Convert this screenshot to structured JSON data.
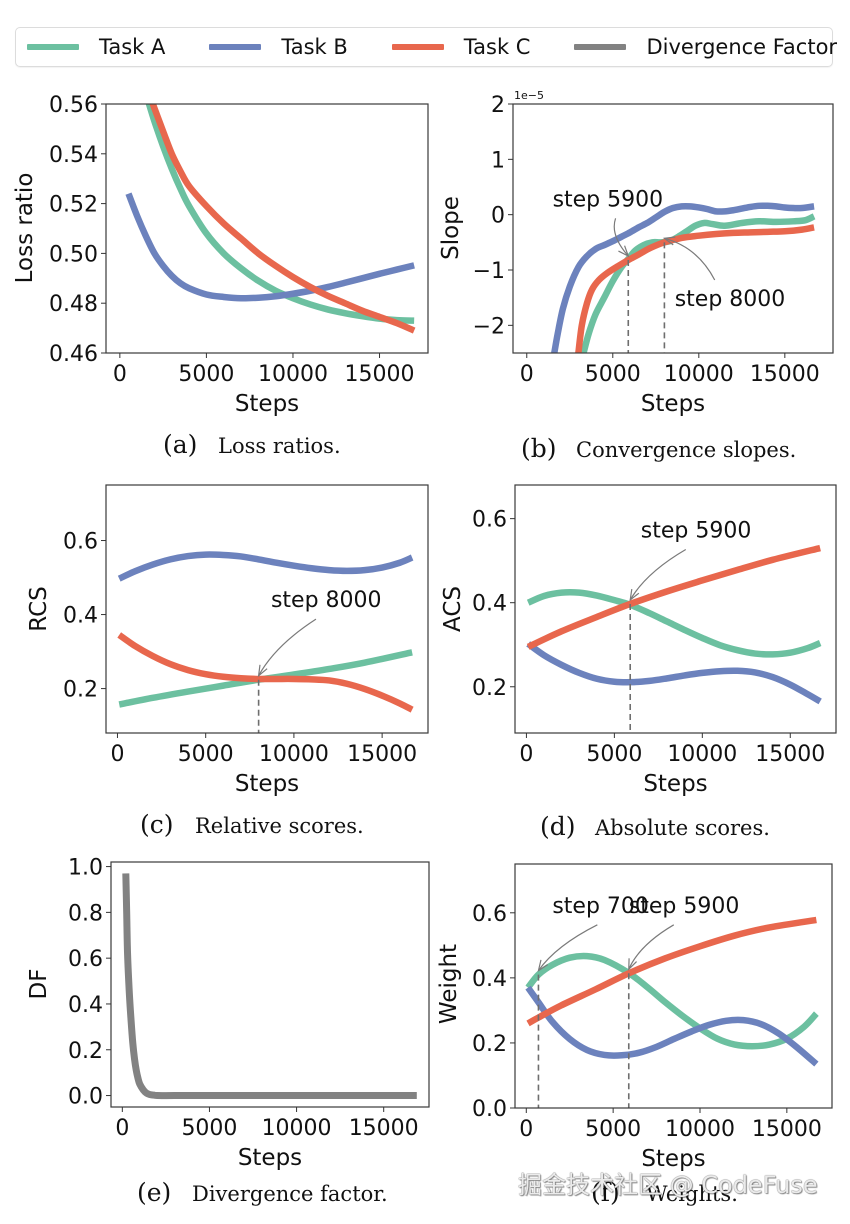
{
  "legend": {
    "items": [
      {
        "label": "Task A",
        "color": "#6cc0a0"
      },
      {
        "label": "Task B",
        "color": "#6c82bd"
      },
      {
        "label": "Task C",
        "color": "#e8674d"
      },
      {
        "label": "Divergence Factor",
        "color": "#828282"
      }
    ]
  },
  "watermark": "掘金技术社区 @ CodeFuse",
  "chart_data": [
    {
      "id": "a",
      "type": "line",
      "caption_letter": "(a)",
      "caption": "Loss ratios.",
      "xlabel": "Steps",
      "ylabel": "Loss ratio",
      "xlim": [
        -800,
        17800
      ],
      "ylim": [
        0.46,
        0.56
      ],
      "xticks": [
        0,
        5000,
        10000,
        15000
      ],
      "yticks": [
        0.46,
        0.48,
        0.5,
        0.52,
        0.54,
        0.56
      ],
      "ytick_labels": [
        "0.46",
        "0.48",
        "0.50",
        "0.52",
        "0.54",
        "0.56"
      ],
      "grid": false,
      "series": [
        {
          "name": "Task A",
          "color": "#6cc0a0",
          "x": [
            1600,
            2000,
            2500,
            3000,
            3500,
            4000,
            5000,
            6000,
            7000,
            8000,
            9000,
            10000,
            11000,
            12000,
            13000,
            14000,
            15000,
            16000,
            17000
          ],
          "y": [
            0.562,
            0.553,
            0.543,
            0.534,
            0.526,
            0.519,
            0.508,
            0.5,
            0.494,
            0.489,
            0.485,
            0.482,
            0.4795,
            0.4775,
            0.476,
            0.4748,
            0.4738,
            0.4732,
            0.473
          ]
        },
        {
          "name": "Task B",
          "color": "#6c82bd",
          "x": [
            500,
            1000,
            1500,
            2000,
            2500,
            3000,
            3500,
            4000,
            5000,
            6000,
            7000,
            8000,
            9000,
            10000,
            11000,
            12000,
            13000,
            14000,
            15000,
            16000,
            17000
          ],
          "y": [
            0.524,
            0.515,
            0.507,
            0.5,
            0.495,
            0.491,
            0.488,
            0.486,
            0.4835,
            0.4825,
            0.482,
            0.4822,
            0.4828,
            0.4838,
            0.485,
            0.4865,
            0.4882,
            0.49,
            0.4918,
            0.4935,
            0.4952
          ]
        },
        {
          "name": "Task C",
          "color": "#e8674d",
          "x": [
            1800,
            2500,
            3000,
            3500,
            4000,
            5000,
            6000,
            7000,
            8000,
            9000,
            10000,
            11000,
            12000,
            13000,
            14000,
            15000,
            16000,
            17000
          ],
          "y": [
            0.562,
            0.549,
            0.54,
            0.533,
            0.527,
            0.519,
            0.512,
            0.506,
            0.5,
            0.495,
            0.4905,
            0.4865,
            0.483,
            0.48,
            0.477,
            0.4745,
            0.472,
            0.469
          ]
        }
      ],
      "annotations": []
    },
    {
      "id": "b",
      "type": "line",
      "caption_letter": "(b)",
      "caption": "Convergence slopes.",
      "xlabel": "Steps",
      "ylabel": "Slope",
      "y_offset_text": "1e−5",
      "xlim": [
        -800,
        17800
      ],
      "ylim": [
        -2.5,
        2.0
      ],
      "xticks": [
        0,
        5000,
        10000,
        15000
      ],
      "yticks": [
        -2,
        -1,
        0,
        1,
        2
      ],
      "ytick_labels": [
        "−2",
        "−1",
        "0",
        "1",
        "2"
      ],
      "grid": false,
      "series": [
        {
          "name": "Task A",
          "color": "#6cc0a0",
          "x": [
            3300,
            3600,
            4000,
            4500,
            5000,
            5500,
            5900,
            6300,
            6800,
            7300,
            7800,
            8300,
            8800,
            9300,
            9800,
            10300,
            10800,
            11500,
            12500,
            13500,
            14500,
            15500,
            16200,
            16700
          ],
          "y": [
            -2.5,
            -2.15,
            -1.8,
            -1.5,
            -1.2,
            -0.95,
            -0.8,
            -0.65,
            -0.55,
            -0.5,
            -0.5,
            -0.48,
            -0.4,
            -0.3,
            -0.2,
            -0.15,
            -0.17,
            -0.2,
            -0.15,
            -0.12,
            -0.13,
            -0.12,
            -0.1,
            -0.03
          ]
        },
        {
          "name": "Task B",
          "color": "#6c82bd",
          "x": [
            1600,
            1800,
            2100,
            2500,
            3000,
            3500,
            4000,
            4500,
            5000,
            5500,
            6000,
            6500,
            7000,
            7500,
            8000,
            8500,
            9000,
            9500,
            10000,
            10500,
            11000,
            11500,
            12000,
            12500,
            13000,
            13500,
            14000,
            14500,
            15000,
            15500,
            16000,
            16700
          ],
          "y": [
            -2.5,
            -2.15,
            -1.7,
            -1.3,
            -0.95,
            -0.75,
            -0.62,
            -0.55,
            -0.48,
            -0.4,
            -0.32,
            -0.23,
            -0.15,
            -0.05,
            0.05,
            0.12,
            0.15,
            0.15,
            0.13,
            0.1,
            0.06,
            0.06,
            0.08,
            0.11,
            0.14,
            0.16,
            0.16,
            0.15,
            0.13,
            0.12,
            0.12,
            0.15
          ]
        },
        {
          "name": "Task C",
          "color": "#e8674d",
          "x": [
            3000,
            3200,
            3500,
            3800,
            4200,
            4700,
            5300,
            5900,
            6500,
            7200,
            8000,
            9000,
            10000,
            11000,
            12000,
            13000,
            14000,
            15000,
            16000,
            16700
          ],
          "y": [
            -2.5,
            -2.0,
            -1.6,
            -1.35,
            -1.18,
            -1.05,
            -0.93,
            -0.82,
            -0.72,
            -0.6,
            -0.5,
            -0.42,
            -0.38,
            -0.35,
            -0.33,
            -0.32,
            -0.31,
            -0.3,
            -0.27,
            -0.23
          ]
        }
      ],
      "annotations": [
        {
          "text": "step 5900",
          "x": 5900,
          "y": -0.82,
          "text_x": 1500,
          "text_y": 0.15,
          "vline": true
        },
        {
          "text": "step 8000",
          "x": 8000,
          "y": -0.5,
          "text_x": 8600,
          "text_y": -1.65,
          "vline": true
        }
      ]
    },
    {
      "id": "c",
      "type": "line",
      "caption_letter": "(c)",
      "caption": "Relative scores.",
      "xlabel": "Steps",
      "ylabel": "RCS",
      "xlim": [
        -650,
        17600
      ],
      "ylim": [
        0.08,
        0.75
      ],
      "xticks": [
        0,
        5000,
        10000,
        15000
      ],
      "yticks": [
        0.2,
        0.4,
        0.6
      ],
      "ytick_labels": [
        "0.2",
        "0.4",
        "0.6"
      ],
      "grid": false,
      "series": [
        {
          "name": "Task A",
          "color": "#6cc0a0",
          "x": [
            100,
            2000,
            4000,
            6000,
            8000,
            10000,
            12000,
            14000,
            16700
          ],
          "y": [
            0.157,
            0.175,
            0.192,
            0.208,
            0.224,
            0.238,
            0.253,
            0.27,
            0.298
          ]
        },
        {
          "name": "Task B",
          "color": "#6c82bd",
          "x": [
            100,
            1000,
            2000,
            3000,
            4000,
            5000,
            6000,
            7000,
            8000,
            9000,
            10000,
            11000,
            12000,
            13000,
            14000,
            15000,
            16000,
            16700
          ],
          "y": [
            0.497,
            0.517,
            0.535,
            0.549,
            0.558,
            0.562,
            0.561,
            0.557,
            0.549,
            0.54,
            0.532,
            0.525,
            0.52,
            0.518,
            0.52,
            0.527,
            0.54,
            0.554
          ]
        },
        {
          "name": "Task C",
          "color": "#e8674d",
          "x": [
            100,
            1000,
            2000,
            3000,
            4000,
            5000,
            6000,
            7000,
            8000,
            9000,
            10000,
            11000,
            12000,
            13000,
            14000,
            15000,
            16000,
            16700
          ],
          "y": [
            0.345,
            0.315,
            0.288,
            0.266,
            0.25,
            0.239,
            0.232,
            0.228,
            0.226,
            0.226,
            0.226,
            0.225,
            0.222,
            0.213,
            0.199,
            0.181,
            0.16,
            0.143
          ]
        }
      ],
      "annotations": [
        {
          "text": "step 8000",
          "x": 8000,
          "y": 0.224,
          "text_x": 8700,
          "text_y": 0.42,
          "vline": true
        }
      ]
    },
    {
      "id": "d",
      "type": "line",
      "caption_letter": "(d)",
      "caption": "Absolute scores.",
      "xlabel": "Steps",
      "ylabel": "ACS",
      "xlim": [
        -650,
        17600
      ],
      "ylim": [
        0.09,
        0.68
      ],
      "xticks": [
        0,
        5000,
        10000,
        15000
      ],
      "yticks": [
        0.2,
        0.4,
        0.6
      ],
      "ytick_labels": [
        "0.2",
        "0.4",
        "0.6"
      ],
      "grid": false,
      "series": [
        {
          "name": "Task A",
          "color": "#6cc0a0",
          "x": [
            100,
            1000,
            2000,
            3000,
            4000,
            5000,
            5900,
            7000,
            8000,
            9000,
            10000,
            11000,
            12000,
            13000,
            14000,
            15000,
            16000,
            16700
          ],
          "y": [
            0.4,
            0.416,
            0.424,
            0.424,
            0.417,
            0.406,
            0.395,
            0.375,
            0.355,
            0.335,
            0.316,
            0.299,
            0.287,
            0.279,
            0.277,
            0.281,
            0.292,
            0.304
          ]
        },
        {
          "name": "Task B",
          "color": "#6c82bd",
          "x": [
            100,
            1000,
            2000,
            3000,
            4000,
            5000,
            6000,
            7000,
            8000,
            9000,
            10000,
            11000,
            12000,
            13000,
            14000,
            15000,
            16000,
            16700
          ],
          "y": [
            0.302,
            0.275,
            0.252,
            0.233,
            0.219,
            0.212,
            0.211,
            0.214,
            0.22,
            0.227,
            0.233,
            0.237,
            0.238,
            0.234,
            0.223,
            0.205,
            0.182,
            0.165
          ]
        },
        {
          "name": "Task C",
          "color": "#e8674d",
          "x": [
            100,
            2000,
            4000,
            5900,
            8000,
            10000,
            12000,
            14000,
            16700
          ],
          "y": [
            0.295,
            0.332,
            0.366,
            0.397,
            0.427,
            0.453,
            0.478,
            0.502,
            0.53
          ]
        }
      ],
      "annotations": [
        {
          "text": "step 5900",
          "x": 5900,
          "y": 0.397,
          "text_x": 6500,
          "text_y": 0.555,
          "vline": true
        }
      ]
    },
    {
      "id": "e",
      "type": "line",
      "caption_letter": "(e)",
      "caption": "Divergence factor.",
      "xlabel": "Steps",
      "ylabel": "DF",
      "xlim": [
        -650,
        17600
      ],
      "ylim": [
        -0.05,
        1.02
      ],
      "xticks": [
        0,
        5000,
        10000,
        15000
      ],
      "yticks": [
        0.0,
        0.2,
        0.4,
        0.6,
        0.8,
        1.0
      ],
      "ytick_labels": [
        "0.0",
        "0.2",
        "0.4",
        "0.6",
        "0.8",
        "1.0"
      ],
      "grid": false,
      "series": [
        {
          "name": "Divergence Factor",
          "color": "#828282",
          "x": [
            200,
            250,
            300,
            400,
            500,
            600,
            700,
            800,
            900,
            1000,
            1200,
            1400,
            1600,
            1800,
            2000,
            3000,
            5000,
            10000,
            15000,
            16900
          ],
          "y": [
            0.97,
            0.8,
            0.62,
            0.45,
            0.33,
            0.23,
            0.16,
            0.11,
            0.075,
            0.05,
            0.025,
            0.01,
            0.004,
            0.002,
            0.0,
            0.0,
            0.0,
            0.0,
            0.0,
            0.0
          ]
        }
      ],
      "annotations": []
    },
    {
      "id": "f",
      "type": "line",
      "caption_letter": "(f)",
      "caption": "Weights.",
      "xlabel": "Steps",
      "ylabel": "Weight",
      "xlim": [
        -650,
        17600
      ],
      "ylim": [
        0.0,
        0.75
      ],
      "xticks": [
        0,
        5000,
        10000,
        15000
      ],
      "yticks": [
        0.0,
        0.2,
        0.4,
        0.6
      ],
      "ytick_labels": [
        "0.0",
        "0.2",
        "0.4",
        "0.6"
      ],
      "grid": false,
      "series": [
        {
          "name": "Task A",
          "color": "#6cc0a0",
          "x": [
            100,
            700,
            1500,
            2500,
            3500,
            4500,
            5900,
            7000,
            8000,
            9000,
            10000,
            11000,
            12000,
            13000,
            14000,
            15000,
            16000,
            16700
          ],
          "y": [
            0.37,
            0.41,
            0.44,
            0.462,
            0.467,
            0.455,
            0.415,
            0.37,
            0.325,
            0.283,
            0.245,
            0.213,
            0.195,
            0.19,
            0.195,
            0.213,
            0.25,
            0.29
          ]
        },
        {
          "name": "Task B",
          "color": "#6c82bd",
          "x": [
            100,
            700,
            1500,
            2500,
            3500,
            4500,
            5500,
            6500,
            7500,
            8500,
            9500,
            10500,
            11500,
            12500,
            13500,
            14500,
            15500,
            16700
          ],
          "y": [
            0.37,
            0.325,
            0.265,
            0.212,
            0.178,
            0.163,
            0.162,
            0.17,
            0.188,
            0.212,
            0.235,
            0.255,
            0.268,
            0.27,
            0.258,
            0.23,
            0.19,
            0.135
          ]
        },
        {
          "name": "Task C",
          "color": "#e8674d",
          "x": [
            100,
            700,
            2000,
            4000,
            5900,
            8000,
            10000,
            12000,
            14000,
            16700
          ],
          "y": [
            0.26,
            0.278,
            0.315,
            0.365,
            0.414,
            0.46,
            0.497,
            0.53,
            0.555,
            0.578
          ]
        }
      ],
      "annotations": [
        {
          "text": "step 700",
          "x": 700,
          "y": 0.41,
          "text_x": 1500,
          "text_y": 0.6,
          "vline": true
        },
        {
          "text": "step 5900",
          "x": 5900,
          "y": 0.414,
          "text_x": 5900,
          "text_y": 0.6,
          "vline": true
        }
      ]
    }
  ]
}
